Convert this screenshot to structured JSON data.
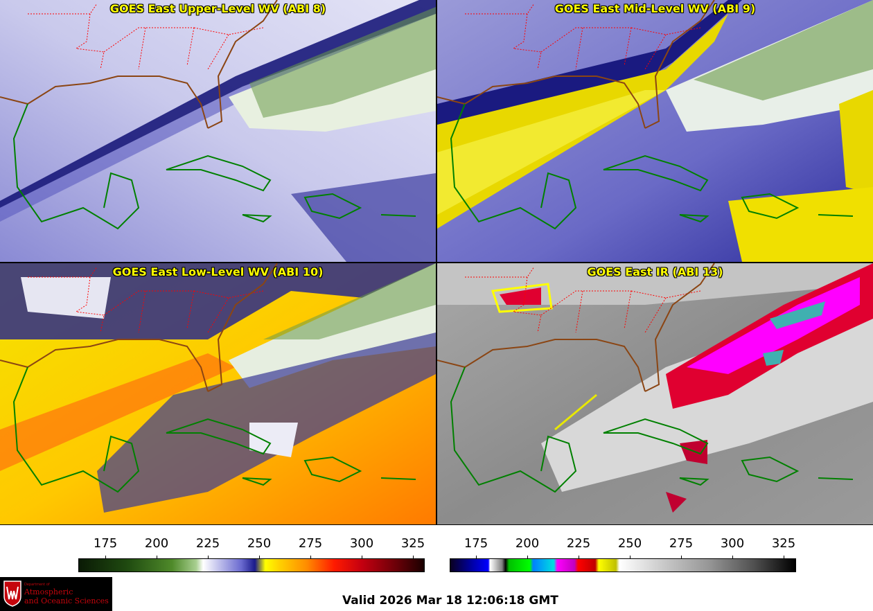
{
  "panels": [
    {
      "title": "GOES East Upper-Level WV (ABI 8)"
    },
    {
      "title": "GOES East Mid-Level WV (ABI 9)"
    },
    {
      "title": "GOES East Low-Level WV (ABI 10)"
    },
    {
      "title": "GOES East IR (ABI 13)"
    }
  ],
  "colorbars": [
    {
      "ticks": [
        "175",
        "200",
        "225",
        "250",
        "275",
        "300",
        "325"
      ]
    },
    {
      "ticks": [
        "175",
        "200",
        "225",
        "250",
        "275",
        "300",
        "325"
      ]
    }
  ],
  "logo": {
    "dept": "Department of",
    "line1": "Atmospheric",
    "line2": "and Oceanic Sciences"
  },
  "valid_time": "Valid 2026 Mar 18 12:06:18 GMT",
  "colors": {
    "title_text": "#ffff00",
    "state_borders": "#ff0000",
    "coastline_us": "#8b4513",
    "coastline_other": "#008000"
  }
}
